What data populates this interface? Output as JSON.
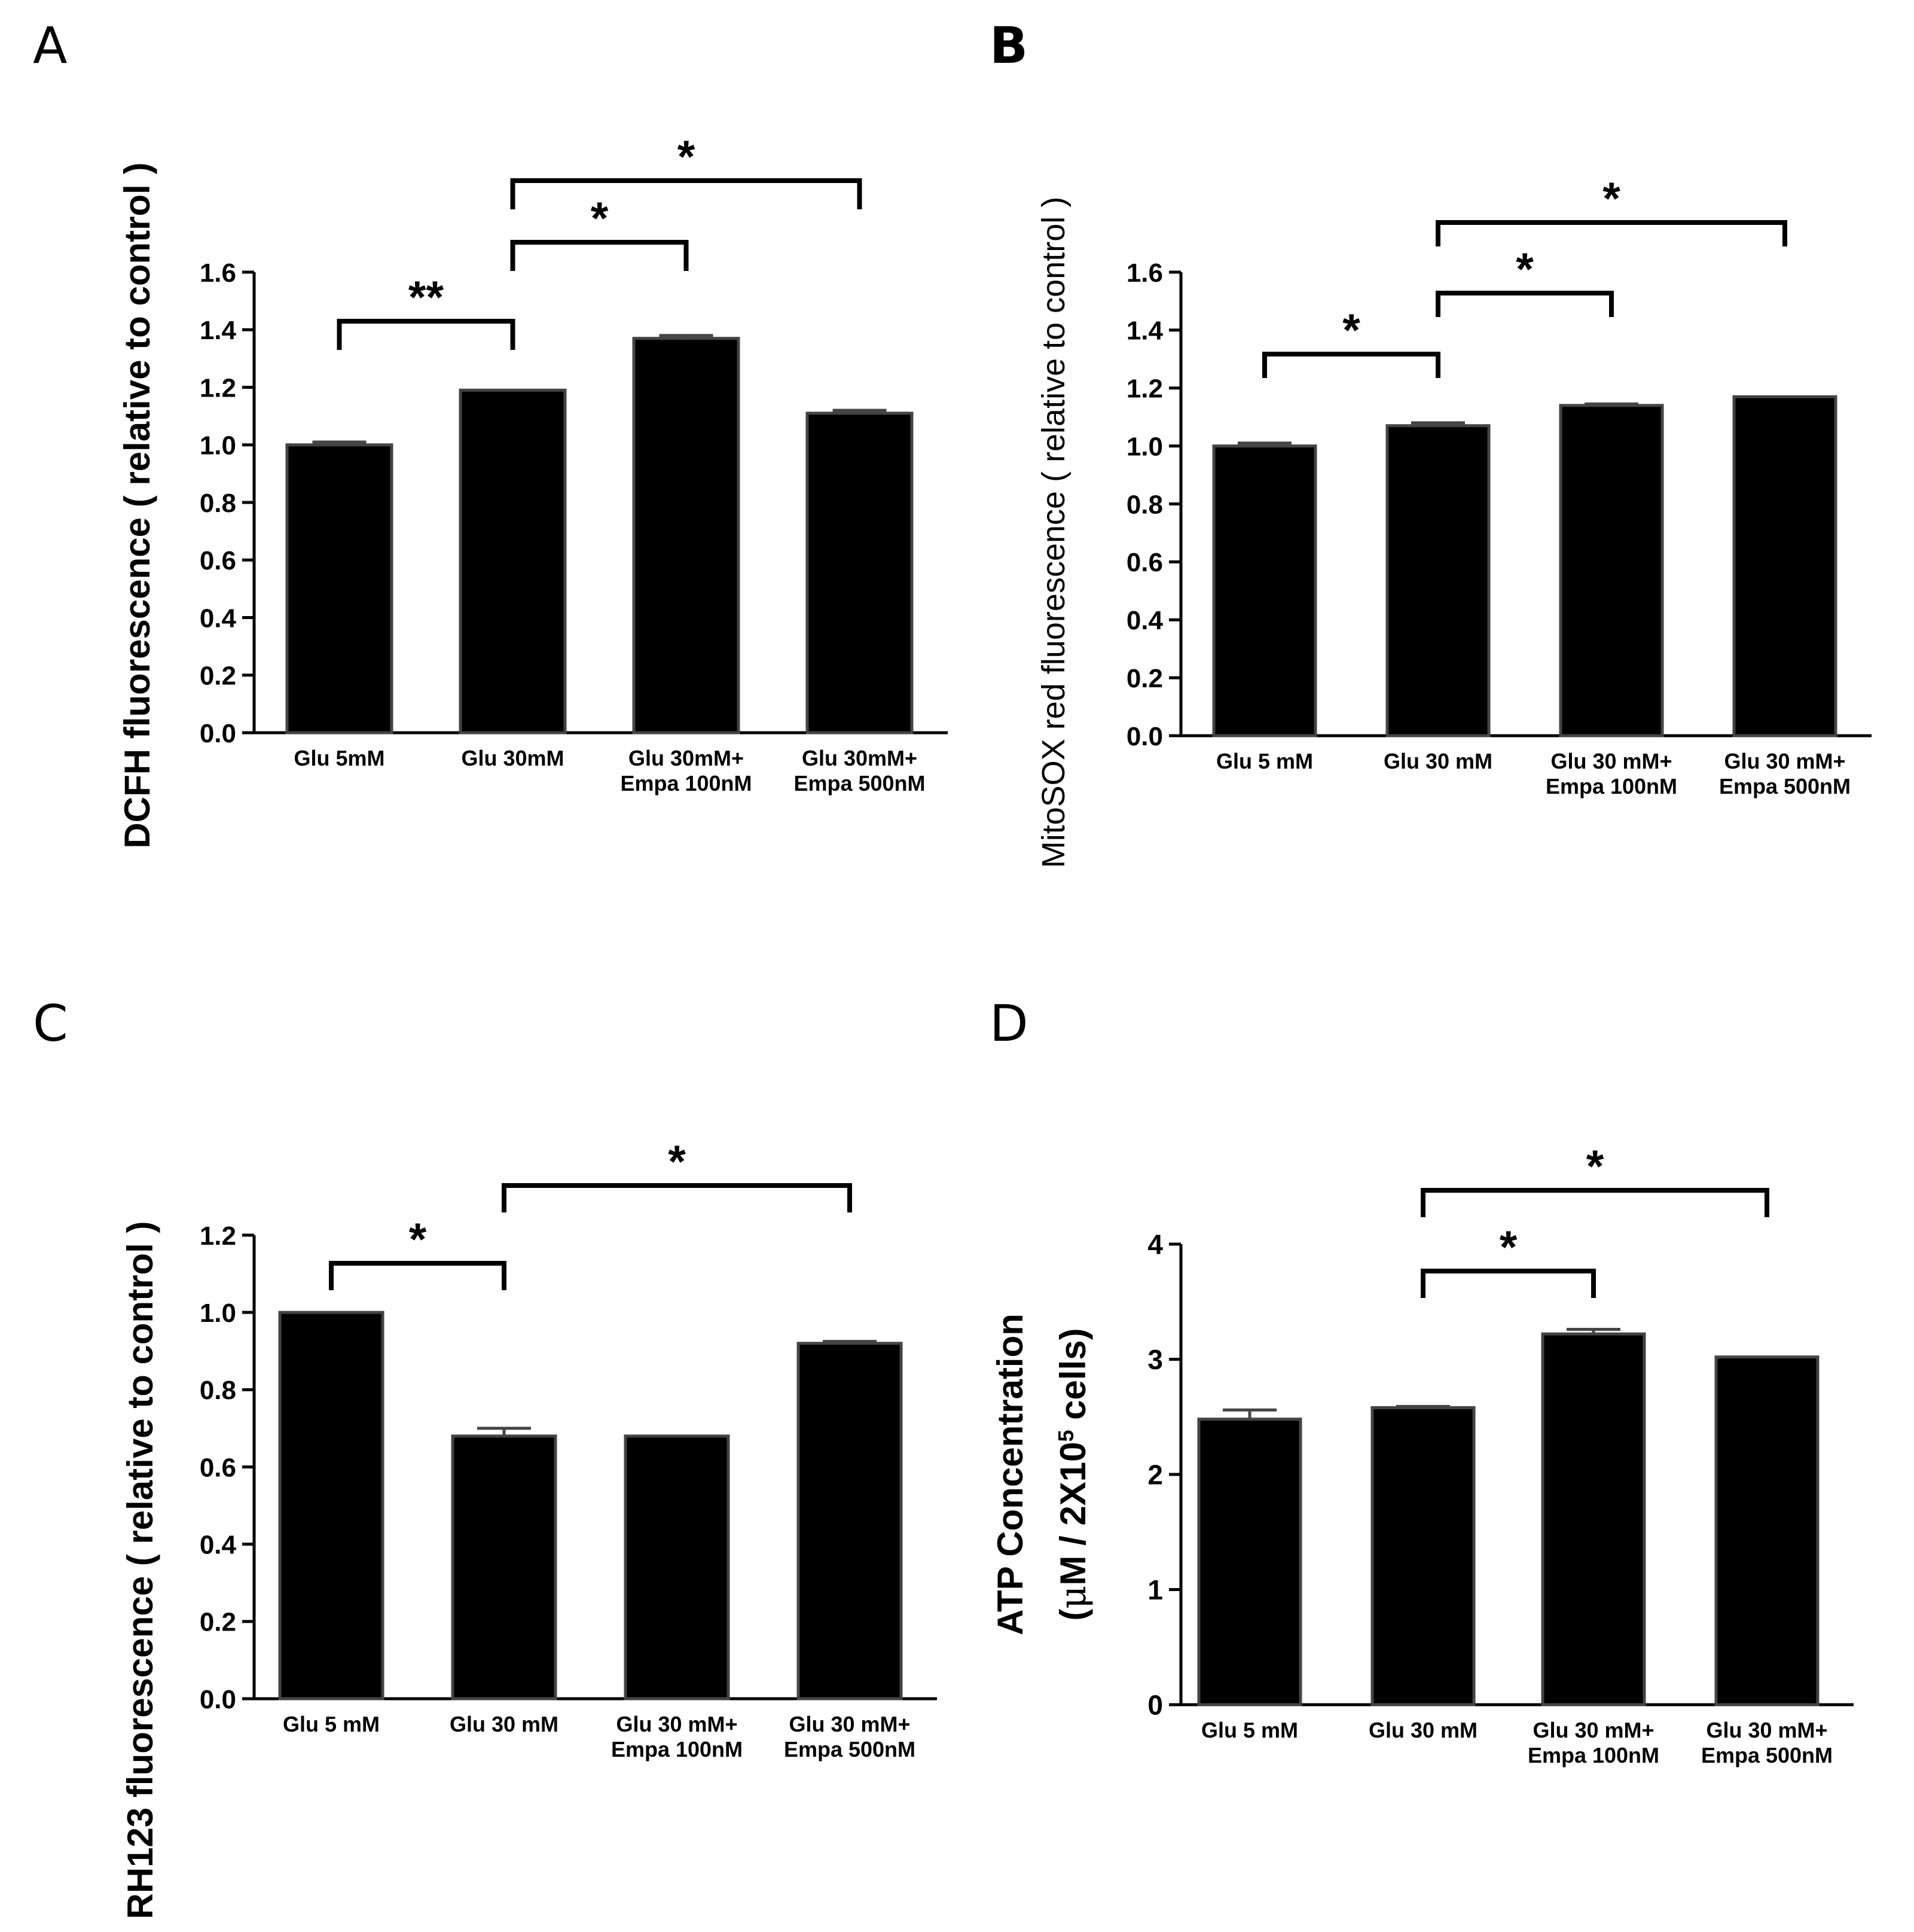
{
  "figure": {
    "panel_labels": [
      "A",
      "B",
      "C",
      "D"
    ]
  },
  "style": {
    "bar_color": "#000000",
    "edge_color": "#444444",
    "line_color": "#000000",
    "background": "#ffffff"
  },
  "chart_data": [
    {
      "panel": "A",
      "type": "bar",
      "title": "",
      "xlabel": "",
      "ylabel": "DCFH fluorescence ( relative to control )",
      "ylim": [
        0,
        1.6
      ],
      "yticks": [
        "0.0",
        "0.2",
        "0.4",
        "0.6",
        "0.8",
        "1.0",
        "1.2",
        "1.4",
        "1.6"
      ],
      "categories": [
        [
          "Glu 5mM"
        ],
        [
          "Glu 30mM"
        ],
        [
          "Glu 30mM+",
          "Empa 100nM"
        ],
        [
          "Glu 30mM+",
          "Empa 500nM"
        ]
      ],
      "values": [
        1.0,
        1.19,
        1.37,
        1.11
      ],
      "errors": [
        0.01,
        0.0,
        0.01,
        0.01
      ],
      "significance": [
        {
          "from": 0,
          "to": 1,
          "label": "**",
          "level": 0
        },
        {
          "from": 1,
          "to": 2,
          "label": "*",
          "level": 1
        },
        {
          "from": 1,
          "to": 3,
          "label": "*",
          "level": 2
        }
      ]
    },
    {
      "panel": "B",
      "type": "bar",
      "title": "",
      "xlabel": "",
      "ylabel": "MitoSOX red fluorescence ( relative to control )",
      "ylim": [
        0,
        1.6
      ],
      "yticks": [
        "0.0",
        "0.2",
        "0.4",
        "0.6",
        "0.8",
        "1.0",
        "1.2",
        "1.4",
        "1.6"
      ],
      "categories": [
        [
          "Glu 5 mM"
        ],
        [
          "Glu 30 mM"
        ],
        [
          "Glu 30 mM+",
          "Empa 100nM"
        ],
        [
          "Glu 30 mM+",
          "Empa 500nM"
        ]
      ],
      "values": [
        1.0,
        1.07,
        1.14,
        1.17
      ],
      "errors": [
        0.01,
        0.01,
        0.005,
        0.0
      ],
      "significance": [
        {
          "from": 0,
          "to": 1,
          "label": "*",
          "level": 0
        },
        {
          "from": 1,
          "to": 2,
          "label": "*",
          "level": 1
        },
        {
          "from": 1,
          "to": 3,
          "label": "*",
          "level": 2
        }
      ]
    },
    {
      "panel": "C",
      "type": "bar",
      "title": "",
      "xlabel": "",
      "ylabel": "RH123 fluorescence ( relative to control )",
      "ylim": [
        0,
        1.2
      ],
      "yticks": [
        "0.0",
        "0.2",
        "0.4",
        "0.6",
        "0.8",
        "1.0",
        "1.2"
      ],
      "categories": [
        [
          "Glu 5 mM"
        ],
        [
          "Glu 30 mM"
        ],
        [
          "Glu 30 mM+",
          "Empa 100nM"
        ],
        [
          "Glu 30 mM+",
          "Empa 500nM"
        ]
      ],
      "values": [
        1.0,
        0.68,
        0.68,
        0.92
      ],
      "errors": [
        0.0,
        0.02,
        0.0,
        0.005
      ],
      "significance": [
        {
          "from": 0,
          "to": 1,
          "label": "*",
          "level": 0
        },
        {
          "from": 1,
          "to": 3,
          "label": "*",
          "level": 1
        }
      ]
    },
    {
      "panel": "D",
      "type": "bar",
      "title": "",
      "xlabel": "",
      "ylabel": "ATP Concentration",
      "ylabel2_prefix": "(",
      "ylabel2_greek": "μ",
      "ylabel2_mid": "M / 2X10",
      "ylabel2_sup": "5",
      "ylabel2_end": " cells)",
      "ylim": [
        0,
        4
      ],
      "yticks": [
        "0",
        "1",
        "2",
        "3",
        "4"
      ],
      "categories": [
        [
          "Glu 5 mM"
        ],
        [
          "Glu 30 mM"
        ],
        [
          "Glu 30 mM+",
          "Empa 100nM"
        ],
        [
          "Glu 30 mM+",
          "Empa 500nM"
        ]
      ],
      "values": [
        2.48,
        2.58,
        3.22,
        3.02
      ],
      "errors": [
        0.08,
        0.01,
        0.04,
        0.0
      ],
      "significance": [
        {
          "from": 1,
          "to": 2,
          "label": "*",
          "level": 0
        },
        {
          "from": 1,
          "to": 3,
          "label": "*",
          "level": 1
        }
      ]
    }
  ]
}
